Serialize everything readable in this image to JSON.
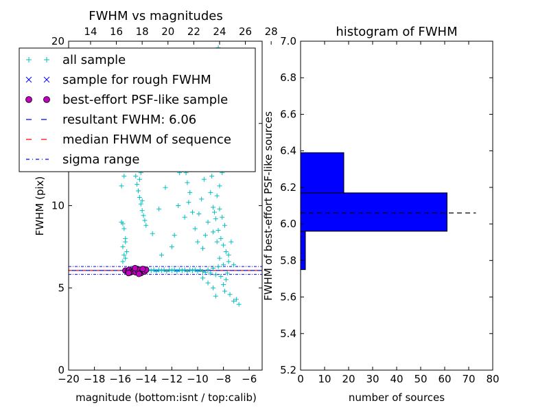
{
  "chart_data": [
    {
      "type": "scatter",
      "title": "FWHM vs magnitudes",
      "xlabel": "magnitude (bottom:isnt / top:calib)",
      "ylabel": "FWHM (pix)",
      "xlim": [
        -20,
        -5
      ],
      "ylim": [
        0,
        20
      ],
      "x_ticks": [
        -20,
        -18,
        -16,
        -14,
        -12,
        -10,
        -8,
        -6
      ],
      "x_tick_labels": [
        "−20",
        "−18",
        "−16",
        "−14",
        "−12",
        "−10",
        "−8",
        "−6"
      ],
      "y_ticks": [
        0,
        5,
        10,
        15,
        20
      ],
      "y_tick_labels": [
        "0",
        "5",
        "10",
        "15",
        "20"
      ],
      "top_axis": {
        "xlim": [
          12.3,
          27.3
        ],
        "ticks": [
          14,
          16,
          18,
          20,
          22,
          24,
          26,
          28
        ],
        "tick_labels": [
          "14",
          "16",
          "18",
          "20",
          "22",
          "24",
          "26",
          "28"
        ]
      },
      "grid": false,
      "legend_position": "upper-left",
      "legend": [
        {
          "label": "all sample",
          "marker": "plus",
          "color": "#00bfbf"
        },
        {
          "label": "sample for rough FWHM",
          "marker": "x",
          "color": "#0000ff"
        },
        {
          "label": "best-effort PSF-like sample",
          "marker": "circle",
          "color": "#bf00bf"
        },
        {
          "label": "resultant FWHM: 6.06",
          "marker": "dashed",
          "color": "#0000ff"
        },
        {
          "label": "median FHWM of sequence",
          "marker": "dashed",
          "color": "#ff0000"
        },
        {
          "label": "sigma range",
          "marker": "dashdot",
          "color": "#0000ff"
        }
      ],
      "reference_lines": {
        "resultant_fwhm": 6.06,
        "median_fwhm_of_sequence": 6.06,
        "sigma_range": [
          5.82,
          6.3
        ]
      },
      "series": [
        {
          "name": "all sample",
          "color": "#00bfbf",
          "marker": "plus",
          "points": [
            [
              -15.4,
              6.1
            ],
            [
              -15.2,
              6.05
            ],
            [
              -15.0,
              6.1
            ],
            [
              -14.8,
              6.0
            ],
            [
              -14.6,
              6.1
            ],
            [
              -14.4,
              6.05
            ],
            [
              -14.2,
              6.1
            ],
            [
              -14.0,
              6.0
            ],
            [
              -13.8,
              6.1
            ],
            [
              -13.6,
              6.05
            ],
            [
              -13.4,
              6.1
            ],
            [
              -13.2,
              6.0
            ],
            [
              -13.0,
              6.1
            ],
            [
              -12.8,
              6.05
            ],
            [
              -12.6,
              6.1
            ],
            [
              -12.4,
              6.0
            ],
            [
              -12.2,
              6.1
            ],
            [
              -12.0,
              6.05
            ],
            [
              -11.8,
              6.1
            ],
            [
              -11.6,
              6.0
            ],
            [
              -11.4,
              6.1
            ],
            [
              -11.2,
              6.05
            ],
            [
              -11.0,
              6.1
            ],
            [
              -10.8,
              6.0
            ],
            [
              -10.6,
              6.1
            ],
            [
              -10.4,
              6.05
            ],
            [
              -10.2,
              6.1
            ],
            [
              -10.0,
              6.0
            ],
            [
              -9.8,
              6.1
            ],
            [
              -9.6,
              6.0
            ],
            [
              -9.4,
              5.95
            ],
            [
              -9.2,
              6.1
            ],
            [
              -9.0,
              5.9
            ],
            [
              -8.8,
              6.2
            ],
            [
              -8.6,
              5.8
            ],
            [
              -8.4,
              6.3
            ],
            [
              -8.2,
              5.7
            ],
            [
              -8.0,
              6.4
            ],
            [
              -7.8,
              5.5
            ],
            [
              -7.6,
              6.6
            ],
            [
              -15.8,
              8.9
            ],
            [
              -15.7,
              8.6
            ],
            [
              -15.6,
              8.0
            ],
            [
              -15.8,
              7.5
            ],
            [
              -15.7,
              7.0
            ],
            [
              -15.6,
              6.8
            ],
            [
              -15.5,
              7.2
            ],
            [
              -15.9,
              9.0
            ],
            [
              -15.7,
              11.8
            ],
            [
              -15.9,
              11.2
            ],
            [
              -15.6,
              7.8
            ],
            [
              -15.8,
              6.6
            ],
            [
              -14.8,
              11.8
            ],
            [
              -14.7,
              11.3
            ],
            [
              -14.6,
              10.9
            ],
            [
              -14.5,
              10.5
            ],
            [
              -14.4,
              10.1
            ],
            [
              -14.3,
              9.7
            ],
            [
              -14.2,
              9.4
            ],
            [
              -14.1,
              9.1
            ],
            [
              -14.6,
              12.5
            ],
            [
              -14.8,
              12.2
            ],
            [
              -14.5,
              11.6
            ],
            [
              -14.3,
              10.3
            ],
            [
              -14.0,
              8.8
            ],
            [
              -14.7,
              13.0
            ],
            [
              -14.4,
              12.0
            ],
            [
              -13.5,
              8.3
            ],
            [
              -13.0,
              9.8
            ],
            [
              -12.5,
              11.1
            ],
            [
              -11.5,
              10.0
            ],
            [
              -11.0,
              9.3
            ],
            [
              -12.8,
              7.0
            ],
            [
              -12.0,
              7.5
            ],
            [
              -11.8,
              8.2
            ],
            [
              -11.2,
              13.8
            ],
            [
              -11.0,
              12.6
            ],
            [
              -10.8,
              11.4
            ],
            [
              -11.4,
              12.0
            ],
            [
              -10.6,
              10.8
            ],
            [
              -10.4,
              9.6
            ],
            [
              -10.2,
              8.6
            ],
            [
              -10.0,
              7.8
            ],
            [
              -11.1,
              13.2
            ],
            [
              -10.9,
              12.0
            ],
            [
              -10.7,
              10.2
            ],
            [
              -9.9,
              9.5
            ],
            [
              -9.7,
              10.4
            ],
            [
              -9.5,
              11.6
            ],
            [
              -9.3,
              12.3
            ],
            [
              -9.1,
              13.0
            ],
            [
              -8.9,
              14.1
            ],
            [
              -8.7,
              15.0
            ],
            [
              -8.6,
              16.6
            ],
            [
              -9.0,
              10.8
            ],
            [
              -8.8,
              9.9
            ],
            [
              -8.6,
              9.2
            ],
            [
              -8.4,
              8.5
            ],
            [
              -8.2,
              8.0
            ],
            [
              -8.0,
              7.6
            ],
            [
              -7.8,
              7.2
            ],
            [
              -7.6,
              7.0
            ],
            [
              -8.5,
              10.6
            ],
            [
              -8.3,
              11.2
            ],
            [
              -8.1,
              12.0
            ],
            [
              -8.7,
              12.6
            ],
            [
              -8.9,
              11.8
            ],
            [
              -8.4,
              13.5
            ],
            [
              -8.2,
              14.5
            ],
            [
              -8.6,
              18.5
            ],
            [
              -8.4,
              19.6
            ],
            [
              -9.2,
              9.0
            ],
            [
              -8.8,
              8.4
            ],
            [
              -8.5,
              7.8
            ],
            [
              -8.3,
              6.8
            ],
            [
              -8.0,
              5.2
            ],
            [
              -7.9,
              4.8
            ],
            [
              -7.5,
              4.6
            ],
            [
              -7.2,
              4.2
            ],
            [
              -7.0,
              4.3
            ],
            [
              -6.8,
              4.0
            ],
            [
              -8.6,
              4.5
            ],
            [
              -8.8,
              5.0
            ],
            [
              -9.2,
              5.3
            ],
            [
              -9.6,
              5.6
            ],
            [
              -7.7,
              5.9
            ],
            [
              -8.1,
              9.3
            ],
            [
              -8.7,
              9.6
            ],
            [
              -9.4,
              8.2
            ],
            [
              -9.6,
              7.4
            ],
            [
              -7.9,
              8.8
            ],
            [
              -7.4,
              7.8
            ],
            [
              -7.2,
              6.4
            ],
            [
              -8.3,
              9.8
            ]
          ]
        },
        {
          "name": "best-effort PSF-like sample",
          "color": "#bf00bf",
          "marker": "circle",
          "points": [
            [
              -15.6,
              6.05
            ],
            [
              -15.4,
              6.0
            ],
            [
              -15.3,
              6.1
            ],
            [
              -15.2,
              5.95
            ],
            [
              -15.1,
              6.05
            ],
            [
              -15.0,
              6.0
            ],
            [
              -14.9,
              6.1
            ],
            [
              -14.8,
              5.95
            ],
            [
              -14.7,
              6.15
            ],
            [
              -14.6,
              6.0
            ],
            [
              -14.5,
              6.1
            ],
            [
              -14.4,
              5.9
            ],
            [
              -14.3,
              6.05
            ],
            [
              -14.2,
              6.1
            ],
            [
              -14.1,
              6.0
            ],
            [
              -14.0,
              6.1
            ],
            [
              -15.35,
              5.9
            ],
            [
              -14.85,
              6.2
            ],
            [
              -14.55,
              5.85
            ],
            [
              -14.25,
              6.15
            ]
          ]
        }
      ]
    },
    {
      "type": "bar",
      "orientation": "horizontal",
      "title": "histogram of FWHM",
      "xlabel": "number of sources",
      "ylabel": "FWHM of best-effort PSF-like sources",
      "xlim": [
        0,
        80
      ],
      "ylim": [
        5.2,
        7.0
      ],
      "x_ticks": [
        0,
        10,
        20,
        30,
        40,
        50,
        60,
        70,
        80
      ],
      "y_ticks": [
        5.2,
        5.4,
        5.6,
        5.8,
        6.0,
        6.2,
        6.4,
        6.6,
        6.8,
        7.0
      ],
      "y_tick_labels": [
        "5.2",
        "5.4",
        "5.6",
        "5.8",
        "6.0",
        "6.2",
        "6.4",
        "6.6",
        "6.8",
        "7.0"
      ],
      "grid": false,
      "bar_color": "#0000ff",
      "bins": [
        {
          "from": 5.75,
          "to": 5.96,
          "count": 2
        },
        {
          "from": 5.96,
          "to": 6.17,
          "count": 61
        },
        {
          "from": 6.17,
          "to": 6.39,
          "count": 18
        }
      ],
      "reference_line": {
        "y": 6.06,
        "x_range": [
          0,
          73
        ],
        "style": "dashed",
        "color": "#000000"
      }
    }
  ]
}
